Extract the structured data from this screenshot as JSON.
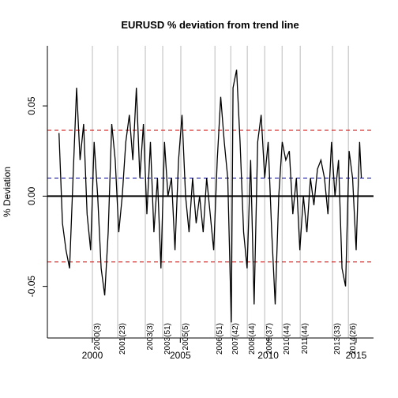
{
  "chart_data": {
    "type": "line",
    "title": "EURUSD  % deviation from trend line",
    "ylabel": "% Deviation",
    "xlim": [
      1997.44,
      2015.99
    ],
    "ylim": [
      -0.0786,
      0.0833
    ],
    "xticks": [
      2000,
      2005,
      2010,
      2015
    ],
    "yticks": [
      -0.05,
      {
        "value": 0,
        "label": "0.00"
      },
      0.05
    ],
    "x": [
      1998.1,
      1998.3,
      1998.5,
      1998.7,
      1998.9,
      1999.1,
      1999.3,
      1999.5,
      1999.7,
      1999.9,
      2000.1,
      2000.3,
      2000.5,
      2000.7,
      2000.9,
      2001.1,
      2001.3,
      2001.5,
      2001.7,
      2001.9,
      2002.1,
      2002.3,
      2002.5,
      2002.7,
      2002.9,
      2003.1,
      2003.3,
      2003.5,
      2003.7,
      2003.9,
      2004.1,
      2004.3,
      2004.5,
      2004.7,
      2004.9,
      2005.1,
      2005.3,
      2005.5,
      2005.7,
      2005.9,
      2006.1,
      2006.3,
      2006.5,
      2006.7,
      2006.9,
      2007.1,
      2007.3,
      2007.5,
      2007.7,
      2007.9,
      2008.0,
      2008.2,
      2008.4,
      2008.6,
      2008.8,
      2009.0,
      2009.2,
      2009.4,
      2009.6,
      2009.8,
      2010.0,
      2010.2,
      2010.4,
      2010.6,
      2010.8,
      2011.0,
      2011.2,
      2011.4,
      2011.6,
      2011.8,
      2012.0,
      2012.2,
      2012.4,
      2012.6,
      2012.8,
      2013.0,
      2013.2,
      2013.4,
      2013.6,
      2013.8,
      2014.0,
      2014.2,
      2014.4,
      2014.6,
      2014.8,
      2015.0,
      2015.2,
      2015.3
    ],
    "series": [
      {
        "name": "deviation",
        "color": "#000000",
        "values": [
          0.035,
          -0.015,
          -0.03,
          -0.04,
          0.01,
          0.06,
          0.02,
          0.04,
          -0.01,
          -0.03,
          0.03,
          0.0,
          -0.04,
          -0.055,
          -0.02,
          0.04,
          0.02,
          -0.02,
          0.0,
          0.03,
          0.045,
          0.02,
          0.06,
          0.01,
          0.04,
          -0.01,
          0.03,
          -0.02,
          0.01,
          -0.04,
          0.03,
          0.0,
          0.01,
          -0.03,
          0.02,
          0.045,
          0.0,
          -0.02,
          0.01,
          -0.015,
          0.0,
          -0.02,
          0.01,
          -0.01,
          -0.03,
          0.02,
          0.055,
          0.03,
          0.01,
          -0.07,
          0.06,
          0.07,
          0.03,
          -0.02,
          -0.04,
          0.02,
          -0.06,
          0.03,
          0.045,
          0.01,
          0.03,
          -0.02,
          -0.06,
          0.0,
          0.03,
          0.02,
          0.025,
          -0.01,
          0.01,
          -0.03,
          0.0,
          -0.02,
          0.01,
          -0.005,
          0.015,
          0.02,
          0.01,
          -0.01,
          0.03,
          0.0,
          0.02,
          -0.04,
          -0.05,
          0.025,
          0.01,
          -0.03,
          0.03,
          0.01
        ]
      }
    ],
    "hlines": [
      {
        "value": 0.0365,
        "color": "#cc0000",
        "dashed": true
      },
      {
        "value": -0.0365,
        "color": "#cc0000",
        "dashed": true
      },
      {
        "value": 0.01,
        "color": "#000099",
        "dashed": true
      },
      {
        "value": 0,
        "color": "#000000",
        "dashed": false
      }
    ],
    "vlines": [
      {
        "x": 2000.0,
        "label": "2000(3)"
      },
      {
        "x": 2001.44,
        "label": "2001(23)"
      },
      {
        "x": 2003.01,
        "label": "2003(3)"
      },
      {
        "x": 2004.0,
        "label": "2003(51)"
      },
      {
        "x": 2005.03,
        "label": "2005(5)"
      },
      {
        "x": 2006.97,
        "label": "2006(51)"
      },
      {
        "x": 2007.87,
        "label": "2007(42)"
      },
      {
        "x": 2008.81,
        "label": "2008(44)"
      },
      {
        "x": 2009.8,
        "label": "2009(37)"
      },
      {
        "x": 2010.79,
        "label": "2010(44)"
      },
      {
        "x": 2011.82,
        "label": "2011(44)"
      },
      {
        "x": 2013.66,
        "label": "2013(33)"
      },
      {
        "x": 2014.56,
        "label": "2014(26)"
      }
    ]
  }
}
